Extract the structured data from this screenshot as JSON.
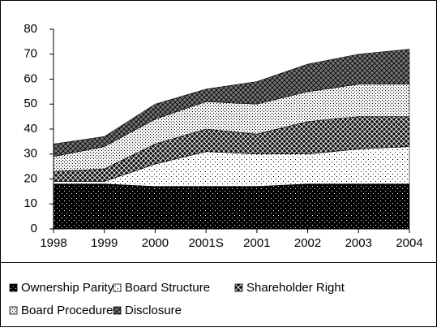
{
  "chart_data": {
    "type": "area",
    "stacked": true,
    "categories": [
      "1998",
      "1999",
      "2000",
      "2001S",
      "2001",
      "2002",
      "2003",
      "2004"
    ],
    "series": [
      {
        "name": "Ownership Parity",
        "color": "#000000",
        "values": [
          18,
          18,
          17,
          17,
          17,
          18,
          18,
          18
        ]
      },
      {
        "name": "Board Structure",
        "color": "#ffffff",
        "values": [
          1,
          1,
          9,
          14,
          13,
          12,
          14,
          15
        ]
      },
      {
        "name": "Shareholder Right",
        "color": "#111111",
        "values": [
          4,
          5,
          8,
          9,
          8,
          13,
          13,
          12
        ]
      },
      {
        "name": "Board Procedure",
        "color": "#f4f4f4",
        "values": [
          6,
          9,
          10,
          11,
          12,
          12,
          13,
          13
        ]
      },
      {
        "name": "Disclosure",
        "color": "#777777",
        "values": [
          5,
          4,
          6,
          5,
          9,
          11,
          12,
          14
        ]
      }
    ],
    "ylim": [
      0,
      80
    ],
    "yticks": [
      0,
      10,
      20,
      30,
      40,
      50,
      60,
      70,
      80
    ],
    "grid": false,
    "legend": "bottom"
  }
}
